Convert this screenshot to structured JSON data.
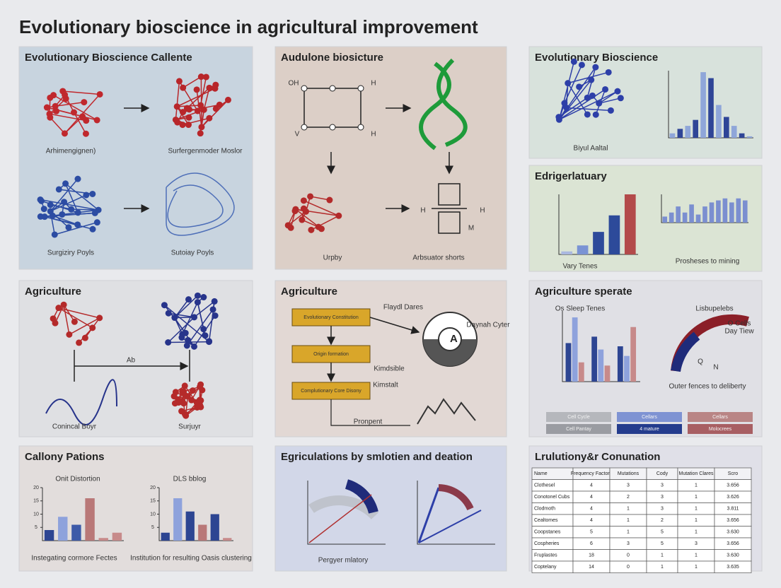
{
  "title": "Evolutionary bioscience in agricultural improvement",
  "panels": [
    {
      "title": "Evolutionary Bioscience Callente",
      "labels": [
        "Arhimengignen)",
        "Surfergenmoder Moslor",
        "Surgiziry Poyls",
        "Sutoiay Poyls"
      ]
    },
    {
      "title": "Audulone biosicture",
      "labels": [
        "OH",
        "H",
        "V",
        "H",
        "Urpby",
        "Arbsuator shorts",
        "H",
        "H",
        "M"
      ]
    },
    {
      "title": "Evolutionary Bioscience",
      "labels": [
        "Biyul Aaltal"
      ]
    },
    {
      "title": "Edrigerlatuary",
      "labels": [
        "Prosheses to mining",
        "Vary Tenes"
      ]
    },
    {
      "title": "Agriculture",
      "labels": [
        "Ab",
        "Conincal Boyr",
        "Surjuyr"
      ]
    },
    {
      "title": "Agriculture",
      "labels": [
        "Evolutionary Constitution",
        "Origin formation",
        "Complutionary Core Disony",
        "Flaydl Dares",
        "Daynah Cyter",
        "Kimdsible",
        "Kimstalt",
        "Pronpent",
        "A"
      ]
    },
    {
      "title": "Agriculture sperate",
      "labels": [
        "Os Sleep Tenes",
        "Lisbupelebs",
        "O Cells",
        "Day Tiew",
        "Q",
        "N",
        "Outer fences to deliberty"
      ],
      "buttons": [
        "Cell Cycle",
        "Cellars",
        "Cellars",
        "Cell Pantay",
        "4 mature",
        "Molocrees"
      ]
    },
    {
      "title": "Callony Pations",
      "labels": [
        "Onit Distortion",
        "DLS bblog",
        "Instegating cormore Fectes",
        "Institution for resulting Oasis clustering"
      ]
    },
    {
      "title": "Egriculations by smlotien and deation",
      "labels": [
        "Pergyer mlatory"
      ]
    },
    {
      "title": "Lrulutiony&r Conunation"
    }
  ],
  "charts": [
    {
      "type": "bar",
      "values": [
        3,
        6,
        8,
        12,
        44,
        40,
        22,
        14,
        8,
        3,
        1
      ],
      "colors": [
        "#8fa6d9",
        "#2f4597"
      ],
      "ylim": [
        0,
        45
      ]
    },
    {
      "type": "bar",
      "values": [
        2,
        6,
        15,
        26,
        40
      ],
      "colors": [
        "#aab8e0",
        "#7a93d4",
        "#2d4a9a",
        "#2d4a9a",
        "#b34a4a"
      ],
      "ylim": [
        0,
        40
      ]
    },
    {
      "type": "bar",
      "values": [
        3,
        5,
        8,
        5,
        9,
        4,
        8,
        10,
        11,
        12,
        10,
        12,
        11
      ],
      "colors": [
        "#7b8fd0"
      ],
      "ylim": [
        0,
        14
      ]
    },
    {
      "type": "grouped",
      "series": [
        {
          "color": "#2d4592",
          "values": [
            12,
            14,
            11
          ]
        },
        {
          "color": "#8ea2dc",
          "values": [
            20,
            10,
            8
          ]
        },
        {
          "color": "#c78a8a",
          "values": [
            6,
            5,
            17
          ]
        }
      ],
      "ylim": [
        0,
        22
      ]
    },
    {
      "type": "bar",
      "values": [
        4,
        9,
        6,
        16,
        1,
        3
      ],
      "colors": [
        "#2d4592",
        "#8ea2dc",
        "#3d5aa8",
        "#b97878",
        "#c78a8a",
        "#c78a8a"
      ],
      "ylim": [
        0,
        20
      ],
      "yticks": [
        5,
        10,
        15,
        20
      ]
    },
    {
      "type": "bar",
      "values": [
        3,
        16,
        11,
        6,
        10,
        1
      ],
      "colors": [
        "#2d4592",
        "#8ea2dc",
        "#2d4592",
        "#b97878",
        "#2d4592",
        "#c78a8a"
      ],
      "ylim": [
        0,
        20
      ],
      "yticks": [
        5,
        10,
        15,
        20
      ]
    }
  ],
  "table": {
    "header": [
      "Name",
      "Frequency Factors",
      "Mutations",
      "Cody",
      "Mutation Clares",
      "Scro"
    ],
    "rows": [
      [
        "Clothesel",
        "4",
        "3",
        "3",
        "1",
        "3.656"
      ],
      [
        "Conotonel Cubs",
        "4",
        "2",
        "3",
        "1",
        "3.626"
      ],
      [
        "Clodmoth",
        "4",
        "1",
        "3",
        "1",
        "3.811"
      ],
      [
        "Cealtomes",
        "4",
        "1",
        "2",
        "1",
        "3.656"
      ],
      [
        "Coopstanes",
        "5",
        "1",
        "5",
        "1",
        "3.630"
      ],
      [
        "Cospheries",
        "6",
        "3",
        "5",
        "3",
        "3.656"
      ],
      [
        "Fruplastes",
        "18",
        "0",
        "1",
        "1",
        "3.630"
      ],
      [
        "Coptelany",
        "14",
        "0",
        "1",
        "1",
        "3.635"
      ]
    ]
  }
}
